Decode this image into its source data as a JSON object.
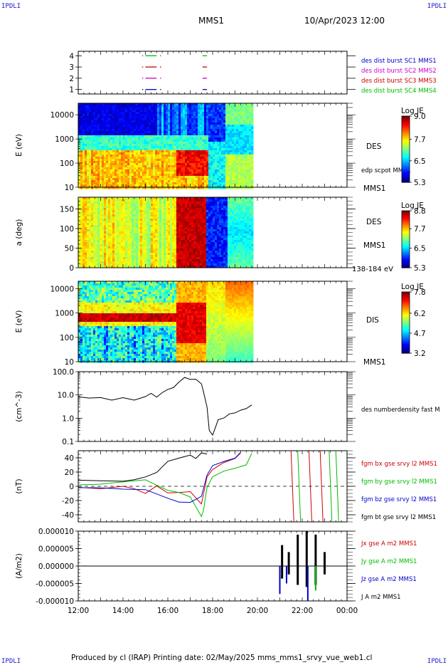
{
  "corners": {
    "tl": "IPDLI",
    "tr": "IPDLI",
    "bl": "IPDLI",
    "br": "IPDLI"
  },
  "header": {
    "title": "MMS1",
    "datetime": "10/Apr/2023 12:00"
  },
  "footer": {
    "text": "Produced by cl (IRAP)   Printing date: 02/May/2025   mms_mms1_srvy_vue_web1.cl"
  },
  "colors": {
    "c1": "#0000cc",
    "c2": "#cc00cc",
    "c3": "#cc0000",
    "c4": "#00bb00",
    "black": "#000000"
  },
  "chart_data": [
    {
      "type": "line",
      "panel": "burst_availability",
      "ylabel": "",
      "yticks": [
        "1",
        "2",
        "3",
        "4"
      ],
      "ylim": [
        0.6,
        4.4
      ],
      "xlim_hours": [
        12,
        24
      ],
      "xticks": [
        "12:00",
        "14:00",
        "16:00",
        "18:00",
        "20:00",
        "22:00",
        "00:00"
      ],
      "series": [
        {
          "name": "des dist burst SC1 MMS1",
          "level": 1,
          "color": "c1",
          "segments": [
            [
              14.85,
              14.9
            ],
            [
              15.0,
              15.5
            ],
            [
              15.65,
              15.7
            ],
            [
              17.55,
              17.75
            ]
          ]
        },
        {
          "name": "des dist burst SC2 MMS2",
          "level": 2,
          "color": "c2",
          "segments": [
            [
              14.85,
              14.9
            ],
            [
              15.0,
              15.5
            ],
            [
              15.65,
              15.7
            ],
            [
              17.55,
              17.75
            ]
          ]
        },
        {
          "name": "des dist burst SC3 MMS3",
          "level": 3,
          "color": "c3",
          "segments": [
            [
              14.85,
              14.9
            ],
            [
              15.0,
              15.5
            ],
            [
              15.65,
              15.7
            ],
            [
              17.55,
              17.75
            ]
          ]
        },
        {
          "name": "des dist burst SC4 MMS4",
          "level": 4,
          "color": "c4",
          "segments": [
            [
              14.85,
              14.9
            ],
            [
              15.0,
              15.5
            ],
            [
              15.65,
              15.7
            ],
            [
              17.55,
              17.75
            ]
          ]
        }
      ]
    },
    {
      "type": "heatmap",
      "panel": "electron_energy",
      "ylabel": "E (eV)",
      "yscale": "log",
      "yticks": [
        "10",
        "100",
        "1000",
        "10000"
      ],
      "ylim": [
        10,
        30000
      ],
      "label": "DES",
      "sublabel": "edp scpot MMS1",
      "bottom_label": "MMS1",
      "colorbar": {
        "title": "Log JE",
        "ticks": [
          "9.0",
          "7.7",
          "6.5",
          "5.3"
        ],
        "range": [
          5.3,
          9.0
        ]
      },
      "data_end_hour": 19.75
    },
    {
      "type": "heatmap",
      "panel": "electron_pitch_angle",
      "ylabel": "a (deg)",
      "yticks": [
        "0",
        "50",
        "100",
        "150"
      ],
      "ylim": [
        0,
        180
      ],
      "label": "DES",
      "sublabel": "MMS1",
      "bottom_label": "138-184 eV",
      "colorbar": {
        "title": "Log JE",
        "ticks": [
          "8.8",
          "7.7",
          "6.5",
          "5.3"
        ],
        "range": [
          5.3,
          8.8
        ]
      },
      "data_end_hour": 19.75
    },
    {
      "type": "heatmap",
      "panel": "ion_energy",
      "ylabel": "E (eV)",
      "yscale": "log",
      "yticks": [
        "10",
        "100",
        "1000",
        "10000"
      ],
      "ylim": [
        10,
        20000
      ],
      "label": "DIS",
      "bottom_label": "MMS1",
      "colorbar": {
        "title": "Log JE",
        "ticks": [
          "7.8",
          "6.2",
          "4.7",
          "3.2"
        ],
        "range": [
          3.2,
          7.8
        ]
      },
      "data_end_hour": 19.75
    },
    {
      "type": "line",
      "panel": "density",
      "ylabel": "(cm^-3)",
      "yscale": "log",
      "yticks": [
        "0.1",
        "1.0",
        "10.0",
        "100.0"
      ],
      "ylim": [
        0.1,
        100
      ],
      "series": [
        {
          "name": "des numberdensity fast M",
          "color": "black",
          "x": [
            12.0,
            12.5,
            13.0,
            13.5,
            14.0,
            14.5,
            15.0,
            15.25,
            15.5,
            15.75,
            16.0,
            16.25,
            16.5,
            16.75,
            17.0,
            17.25,
            17.5,
            17.6,
            17.75,
            17.85,
            18.0,
            18.25,
            18.5,
            18.75,
            19.0,
            19.25,
            19.5,
            19.75
          ],
          "y": [
            8,
            7,
            7.5,
            6,
            7,
            6.5,
            9,
            12,
            10,
            15,
            20,
            25,
            30,
            45,
            40,
            35,
            25,
            12,
            3,
            0.3,
            0.2,
            0.8,
            1.0,
            1.4,
            1.6,
            2.0,
            2.5,
            3.5
          ]
        }
      ]
    },
    {
      "type": "line",
      "panel": "magnetic_field",
      "ylabel": "(nT)",
      "yticks": [
        "-40",
        "-20",
        "0",
        "20",
        "40"
      ],
      "ylim": [
        -50,
        50
      ],
      "series": [
        {
          "name": "fgm bx gse srvy l2 MMS1",
          "color": "c3",
          "x": [
            12.0,
            13.0,
            14.0,
            14.5,
            15.0,
            15.5,
            16.0,
            16.5,
            17.0,
            17.5,
            17.75,
            18.0,
            18.5,
            19.0,
            19.25
          ],
          "y": [
            -2,
            -3,
            -1,
            -2,
            -4,
            -6,
            -10,
            -15,
            -10,
            -20,
            10,
            25,
            32,
            38,
            48
          ]
        },
        {
          "name": "fgm by gse srvy l2 MMS1",
          "color": "c4",
          "x": [
            12.0,
            13.0,
            14.0,
            15.0,
            16.0,
            16.5,
            17.0,
            17.5,
            17.6,
            17.75,
            18.0,
            18.5,
            19.0,
            19.5,
            19.75
          ],
          "y": [
            3,
            4,
            5,
            4,
            0,
            -10,
            -15,
            -45,
            -30,
            0,
            15,
            20,
            25,
            30,
            45
          ]
        },
        {
          "name": "fgm bz gse srvy l2 MMS1",
          "color": "c1",
          "x": [
            12.0,
            13.0,
            14.0,
            15.0,
            16.0,
            16.5,
            17.0,
            17.5,
            17.75,
            18.0,
            18.5,
            19.0,
            19.25
          ],
          "y": [
            -2,
            -1,
            -3,
            -5,
            -12,
            -20,
            -25,
            -15,
            20,
            28,
            34,
            40,
            48
          ]
        },
        {
          "name": "fgm bt gse srvy l2 MMS1",
          "color": "black",
          "x": [
            12.0,
            13.0,
            14.0,
            14.5,
            15.0,
            15.5,
            16.0,
            16.5,
            17.0,
            17.25,
            17.5,
            17.75
          ],
          "y": [
            10,
            9,
            8,
            10,
            15,
            20,
            30,
            35,
            40,
            45,
            48,
            48
          ]
        }
      ]
    },
    {
      "type": "line",
      "panel": "current_density",
      "ylabel": "(A/m2)",
      "yticks": [
        "-0.000010",
        "-0.000005",
        "0.000000",
        "0.000005",
        "0.000010"
      ],
      "ylim": [
        -1e-05,
        1e-05
      ],
      "series": [
        {
          "name": "Jx gse A m2 MMS1",
          "color": "c3"
        },
        {
          "name": "Jy gse A m2 MMS1",
          "color": "c4"
        },
        {
          "name": "Jz gse A m2 MMS1",
          "color": "c1"
        },
        {
          "name": "J A m2 MMS1",
          "color": "black"
        }
      ]
    }
  ]
}
